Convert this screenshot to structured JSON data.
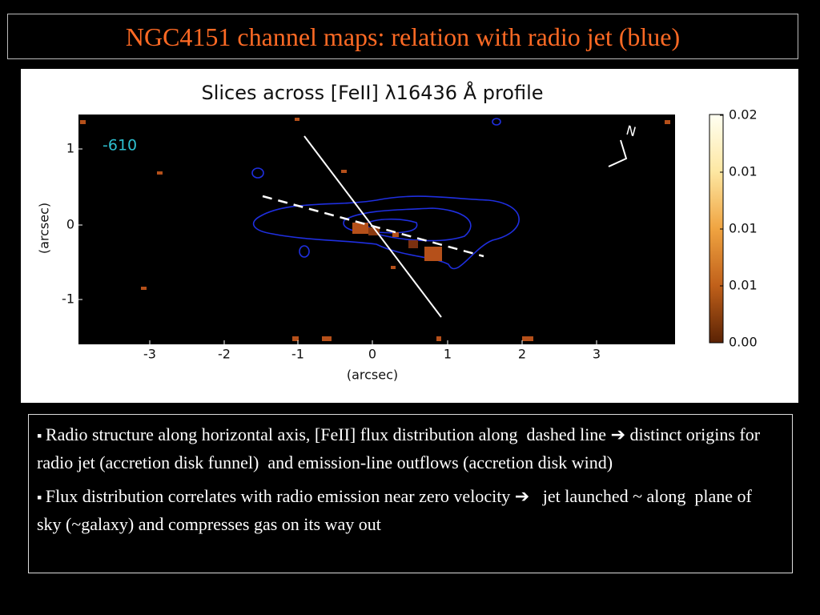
{
  "slide": {
    "title": "NGC4151 channel maps: relation with radio jet (blue)",
    "figure": {
      "title": "Slices across [FeII] λ16436 Å profile",
      "velocity_label": "-610",
      "north_label": "N",
      "x_axis": {
        "label": "(arcsec)",
        "ticks": [
          "-3",
          "-2",
          "-1",
          "0",
          "1",
          "2",
          "3"
        ]
      },
      "y_axis": {
        "label": "(arcsec)",
        "ticks": [
          "1",
          "0",
          "-1"
        ]
      },
      "colorbar": {
        "ticks": [
          "0.02",
          "0.01",
          "0.01",
          "0.01",
          "0.00"
        ]
      }
    },
    "bullets": [
      "Radio structure along horizontal axis, [FeII] flux distribution along  dashed line ➔ distinct origins for radio jet (accretion disk funnel)  and emission-line outflows (accretion disk wind)",
      "Flux distribution correlates with radio emission near zero velocity ➔   jet launched ~ along  plane of  sky (~galaxy) and compresses gas on its way out"
    ]
  }
}
